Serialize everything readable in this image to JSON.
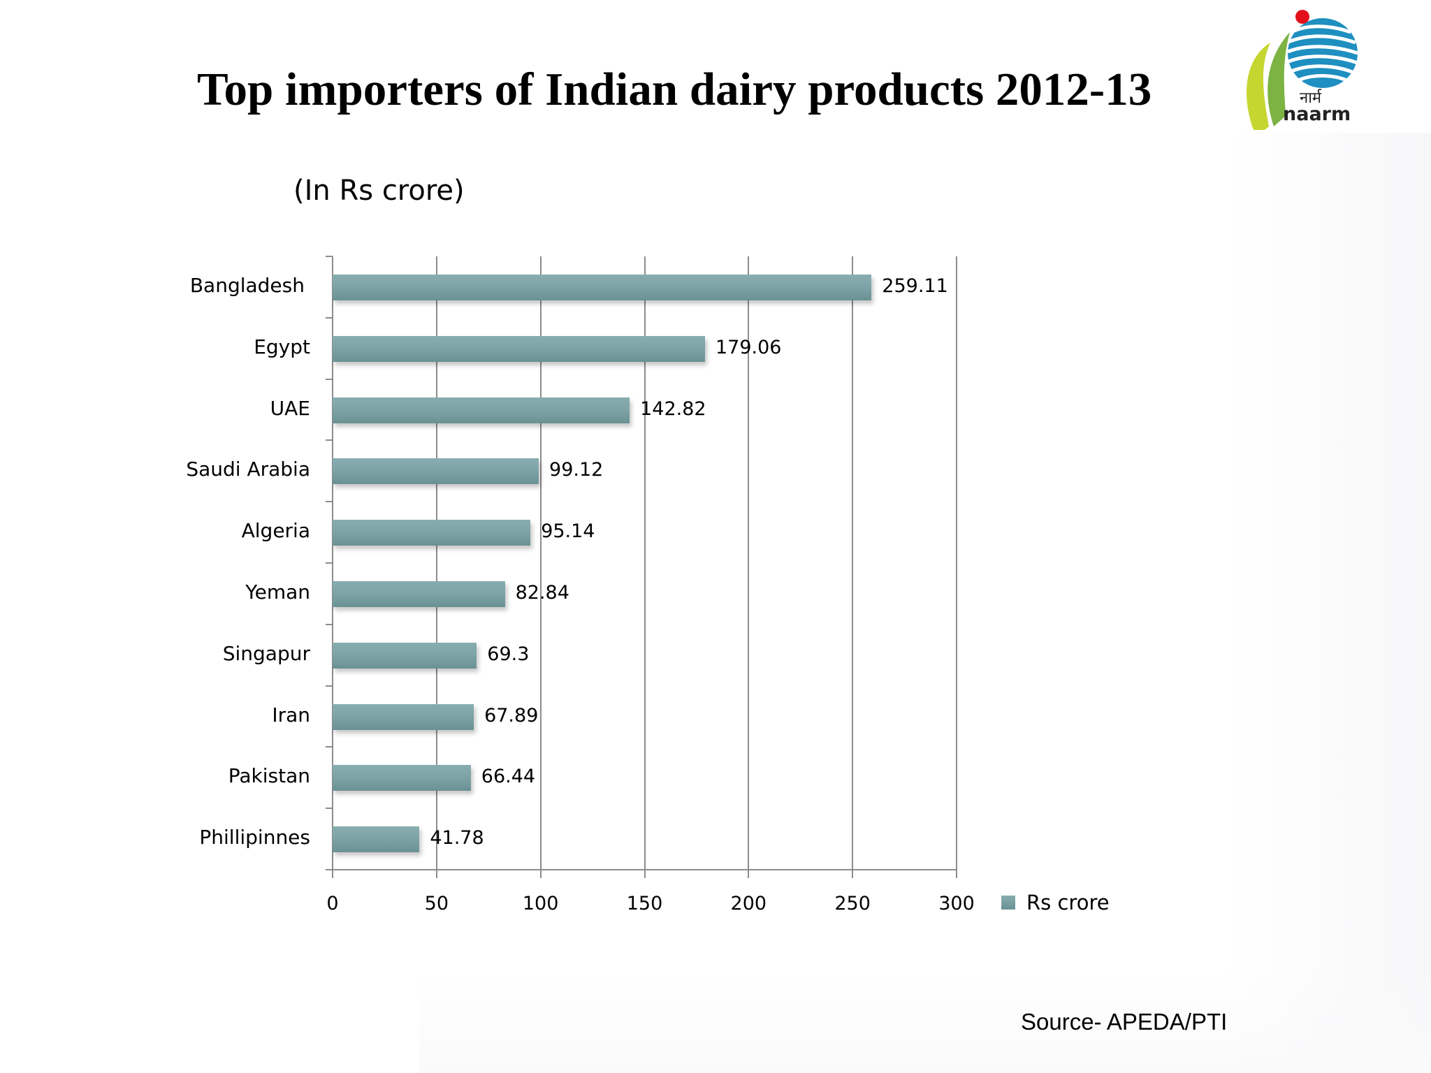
{
  "slide": {
    "title": "Top importers of Indian dairy products 2012-13",
    "subtitle": "(In Rs crore)",
    "source": "Source- APEDA/PTI",
    "logo": {
      "name": "naarm-logo",
      "text": "naarm",
      "hindi_text": "नार्म"
    }
  },
  "colors": {
    "bar": "#7ea4a7",
    "gridline": "#8c8c8c",
    "logo_blue": "#1e8fc0",
    "logo_red": "#e3101c",
    "logo_green": "#7cb342",
    "logo_lime": "#c6d630"
  },
  "chart_data": {
    "type": "bar",
    "orientation": "horizontal",
    "title": "Top importers of Indian dairy products 2012-13",
    "subtitle": "(In Rs crore)",
    "xlabel": "",
    "ylabel": "",
    "categories": [
      "Bangladesh",
      "Egypt",
      "UAE",
      "Saudi Arabia",
      "Algeria",
      "Yeman",
      "Singapur",
      "Iran",
      "Pakistan",
      "Phillipinnes"
    ],
    "values": [
      259.11,
      179.06,
      142.82,
      99.12,
      95.14,
      82.84,
      69.3,
      67.89,
      66.44,
      41.78
    ],
    "value_labels": [
      "259.11",
      "179.06",
      "142.82",
      "99.12",
      "95.14",
      "82.84",
      "69.3",
      "67.89",
      "66.44",
      "41.78"
    ],
    "series": [
      {
        "name": "Rs crore",
        "values": [
          259.11,
          179.06,
          142.82,
          99.12,
          95.14,
          82.84,
          69.3,
          67.89,
          66.44,
          41.78
        ]
      }
    ],
    "xlim": [
      0,
      300
    ],
    "xticks": [
      "0",
      "50",
      "100",
      "150",
      "200",
      "250",
      "300"
    ],
    "grid": {
      "vertical": true,
      "horizontal": false
    },
    "legend": {
      "position": "right",
      "entries": [
        "Rs crore"
      ]
    },
    "source": "Source- APEDA/PTI"
  }
}
